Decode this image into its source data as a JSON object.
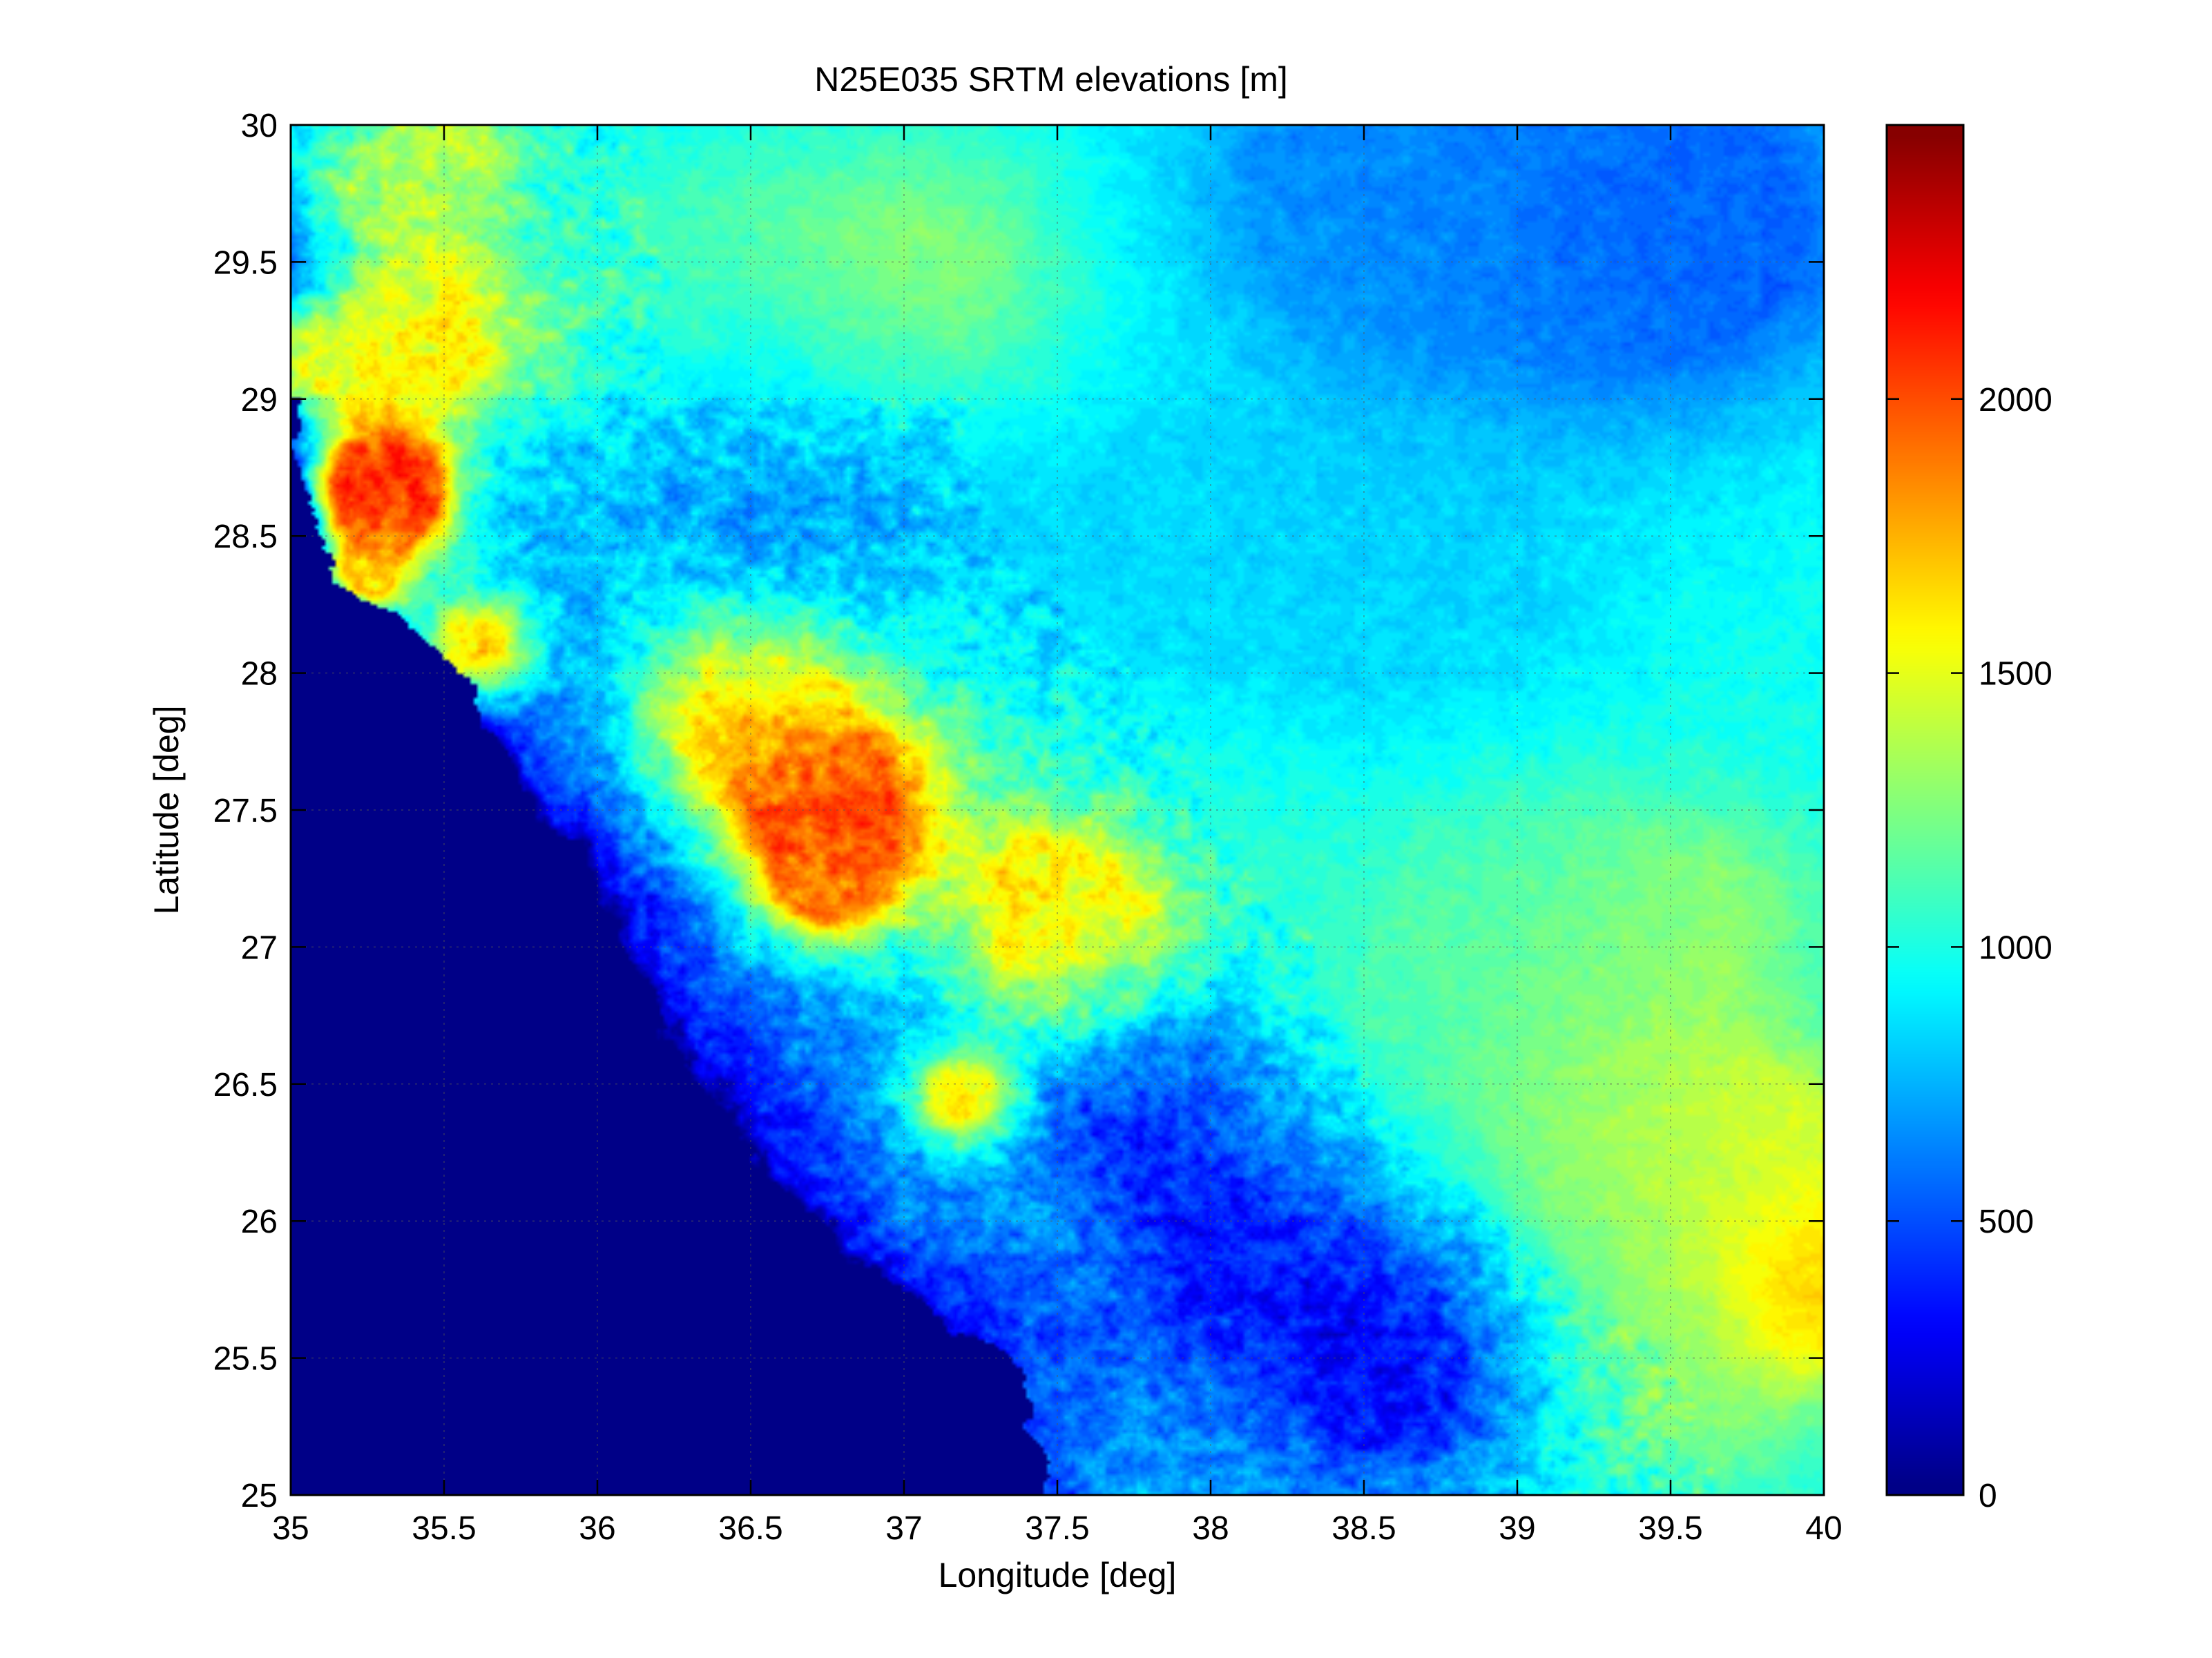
{
  "chart_data": {
    "type": "heatmap",
    "title": "N25E035 SRTM elevations [m]",
    "xlabel": "Longitude [deg]",
    "ylabel": "Latitude [deg]",
    "xlim": [
      35,
      40
    ],
    "ylim": [
      25,
      30
    ],
    "grid": true,
    "x_ticks": [
      35,
      35.5,
      36,
      36.5,
      37,
      37.5,
      38,
      38.5,
      39,
      39.5,
      40
    ],
    "x_tick_labels": [
      "35",
      "35.5",
      "36",
      "36.5",
      "37",
      "37.5",
      "38",
      "38.5",
      "39",
      "39.5",
      "40"
    ],
    "y_ticks": [
      25,
      25.5,
      26,
      26.5,
      27,
      27.5,
      28,
      28.5,
      29,
      29.5,
      30
    ],
    "y_tick_labels": [
      "25",
      "25.5",
      "26",
      "26.5",
      "27",
      "27.5",
      "28",
      "28.5",
      "29",
      "29.5",
      "30"
    ],
    "colorbar": {
      "colormap": "jet",
      "clim": [
        0,
        2500
      ],
      "ticks": [
        0,
        500,
        1000,
        1500,
        2000
      ],
      "tick_labels": [
        "0",
        "500",
        "1000",
        "1500",
        "2000"
      ]
    },
    "sea_coast_lon_at_lat": [
      [
        25.0,
        37.45
      ],
      [
        25.5,
        37.3
      ],
      [
        26.0,
        36.7
      ],
      [
        26.5,
        36.35
      ],
      [
        27.0,
        36.1
      ],
      [
        27.5,
        35.8
      ],
      [
        28.0,
        35.55
      ],
      [
        28.5,
        35.05
      ],
      [
        29.0,
        35.0
      ]
    ],
    "features": [
      {
        "lon": 35.0,
        "lat": 29.5,
        "elev": 200,
        "radius": 0.13
      },
      {
        "lon": 35.15,
        "lat": 29.2,
        "elev": 1450,
        "radius": 0.2
      },
      {
        "lon": 35.3,
        "lat": 29.7,
        "elev": 1300,
        "radius": 0.18
      },
      {
        "lon": 35.5,
        "lat": 29.9,
        "elev": 1400,
        "radius": 0.2
      },
      {
        "lon": 35.45,
        "lat": 29.2,
        "elev": 1650,
        "radius": 0.25
      },
      {
        "lon": 35.3,
        "lat": 28.7,
        "elev": 2350,
        "radius": 0.12
      },
      {
        "lon": 35.33,
        "lat": 28.6,
        "elev": 1900,
        "radius": 0.16
      },
      {
        "lon": 35.25,
        "lat": 28.35,
        "elev": 1600,
        "radius": 0.1
      },
      {
        "lon": 35.6,
        "lat": 28.1,
        "elev": 1700,
        "radius": 0.15
      },
      {
        "lon": 36.5,
        "lat": 27.85,
        "elev": 1800,
        "radius": 0.25
      },
      {
        "lon": 36.8,
        "lat": 27.5,
        "elev": 2150,
        "radius": 0.25
      },
      {
        "lon": 36.75,
        "lat": 27.25,
        "elev": 1800,
        "radius": 0.15
      },
      {
        "lon": 37.5,
        "lat": 27.2,
        "elev": 1650,
        "radius": 0.2
      },
      {
        "lon": 37.6,
        "lat": 26.95,
        "elev": 1600,
        "radius": 0.25
      },
      {
        "lon": 37.2,
        "lat": 26.45,
        "elev": 1800,
        "radius": 0.12
      },
      {
        "lon": 37.05,
        "lat": 29.45,
        "elev": 1300,
        "radius": 0.35
      },
      {
        "lon": 36.3,
        "lat": 29.5,
        "elev": 1100,
        "radius": 0.35
      },
      {
        "lon": 36.6,
        "lat": 28.6,
        "elev": 700,
        "radius": 0.4
      },
      {
        "lon": 37.8,
        "lat": 28.5,
        "elev": 850,
        "radius": 0.5
      },
      {
        "lon": 39.0,
        "lat": 29.8,
        "elev": 600,
        "radius": 0.55
      },
      {
        "lon": 39.6,
        "lat": 29.6,
        "elev": 550,
        "radius": 0.45
      },
      {
        "lon": 38.5,
        "lat": 29.8,
        "elev": 700,
        "radius": 0.4
      },
      {
        "lon": 38.8,
        "lat": 28.2,
        "elev": 850,
        "radius": 0.55
      },
      {
        "lon": 39.0,
        "lat": 27.3,
        "elev": 1200,
        "radius": 0.3
      },
      {
        "lon": 39.6,
        "lat": 27.1,
        "elev": 1300,
        "radius": 0.3
      },
      {
        "lon": 38.6,
        "lat": 26.6,
        "elev": 1150,
        "radius": 0.4
      },
      {
        "lon": 39.3,
        "lat": 26.2,
        "elev": 1350,
        "radius": 0.4
      },
      {
        "lon": 39.95,
        "lat": 25.75,
        "elev": 1900,
        "radius": 0.2
      },
      {
        "lon": 39.85,
        "lat": 26.2,
        "elev": 1500,
        "radius": 0.3
      },
      {
        "lon": 39.6,
        "lat": 25.4,
        "elev": 1250,
        "radius": 0.35
      },
      {
        "lon": 38.2,
        "lat": 25.9,
        "elev": 300,
        "radius": 0.35
      },
      {
        "lon": 38.55,
        "lat": 25.5,
        "elev": 250,
        "radius": 0.35
      },
      {
        "lon": 37.8,
        "lat": 26.5,
        "elev": 350,
        "radius": 0.3
      },
      {
        "lon": 38.0,
        "lat": 25.1,
        "elev": 800,
        "radius": 0.3
      },
      {
        "lon": 37.4,
        "lat": 25.3,
        "elev": 500,
        "radius": 0.25
      }
    ]
  }
}
